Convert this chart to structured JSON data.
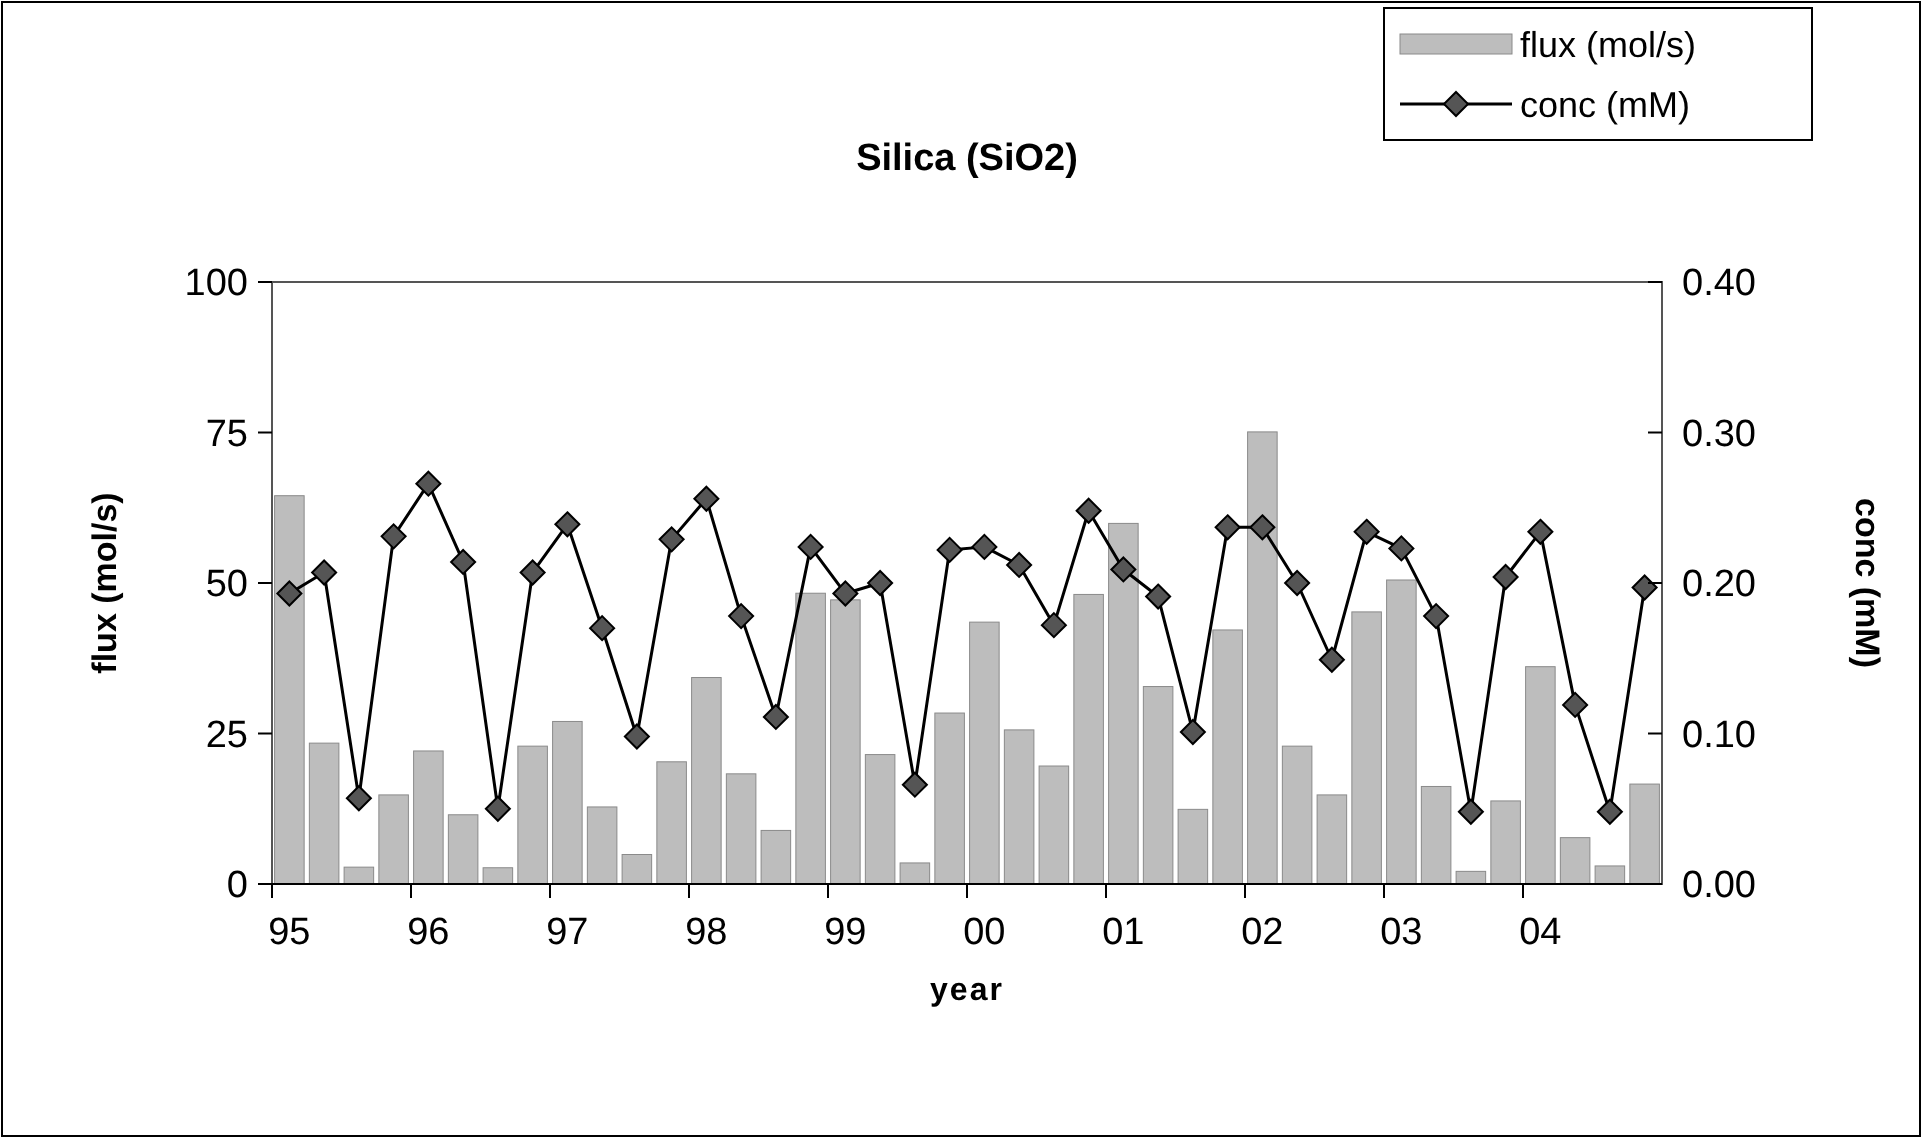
{
  "chart_data": {
    "type": "bar",
    "title": "Silica (SiO2)",
    "xlabel": "year",
    "ylabel": "flux (mol/s)",
    "y2label": "conc (mM)",
    "categories": [
      "95",
      null,
      null,
      null,
      "96",
      null,
      null,
      null,
      "97",
      null,
      null,
      null,
      "98",
      null,
      null,
      null,
      "99",
      null,
      null,
      null,
      "00",
      null,
      null,
      null,
      "01",
      null,
      null,
      null,
      "02",
      null,
      null,
      null,
      "03",
      null,
      null,
      null,
      "04",
      null,
      null,
      null
    ],
    "series": [
      {
        "name": "flux (mol/s)",
        "color": "#bdbdbd",
        "values": [
          64.5,
          23.4,
          2.8,
          14.8,
          22.1,
          11.5,
          2.7,
          22.9,
          27.0,
          12.8,
          4.9,
          20.3,
          34.3,
          18.3,
          8.9,
          48.3,
          47.2,
          21.5,
          3.5,
          28.4,
          43.5,
          25.6,
          19.6,
          48.1,
          59.9,
          32.8,
          12.4,
          42.2,
          75.1,
          22.9,
          14.8,
          45.2,
          50.5,
          16.2,
          2.1,
          13.8,
          36.1,
          7.7,
          3.0,
          16.6
        ]
      },
      {
        "name": "conc (mM)",
        "type": "line",
        "axis": "y2",
        "color": "#000000",
        "marker": "diamond",
        "values": [
          0.193,
          0.207,
          0.057,
          0.231,
          0.266,
          0.214,
          0.05,
          0.207,
          0.239,
          0.17,
          0.098,
          0.229,
          0.256,
          0.178,
          0.111,
          0.224,
          0.193,
          0.2,
          0.066,
          0.222,
          0.224,
          0.212,
          0.172,
          0.248,
          0.209,
          0.191,
          0.101,
          0.237,
          0.237,
          0.2,
          0.149,
          0.234,
          0.223,
          0.178,
          0.048,
          0.204,
          0.234,
          0.119,
          0.048,
          0.197
        ]
      }
    ],
    "ylim": [
      0,
      100
    ],
    "yticks": [
      0,
      25,
      50,
      75,
      100
    ],
    "y2lim": [
      0,
      0.4
    ],
    "y2ticks": [
      {
        "value": 0,
        "label": "0.00"
      },
      {
        "value": 0.1,
        "label": "0.10"
      },
      {
        "value": 0.2,
        "label": "0.20"
      },
      {
        "value": 0.3,
        "label": "0.30"
      },
      {
        "value": 0.4,
        "label": "0.40"
      }
    ],
    "legend": "top right",
    "grid": false
  }
}
